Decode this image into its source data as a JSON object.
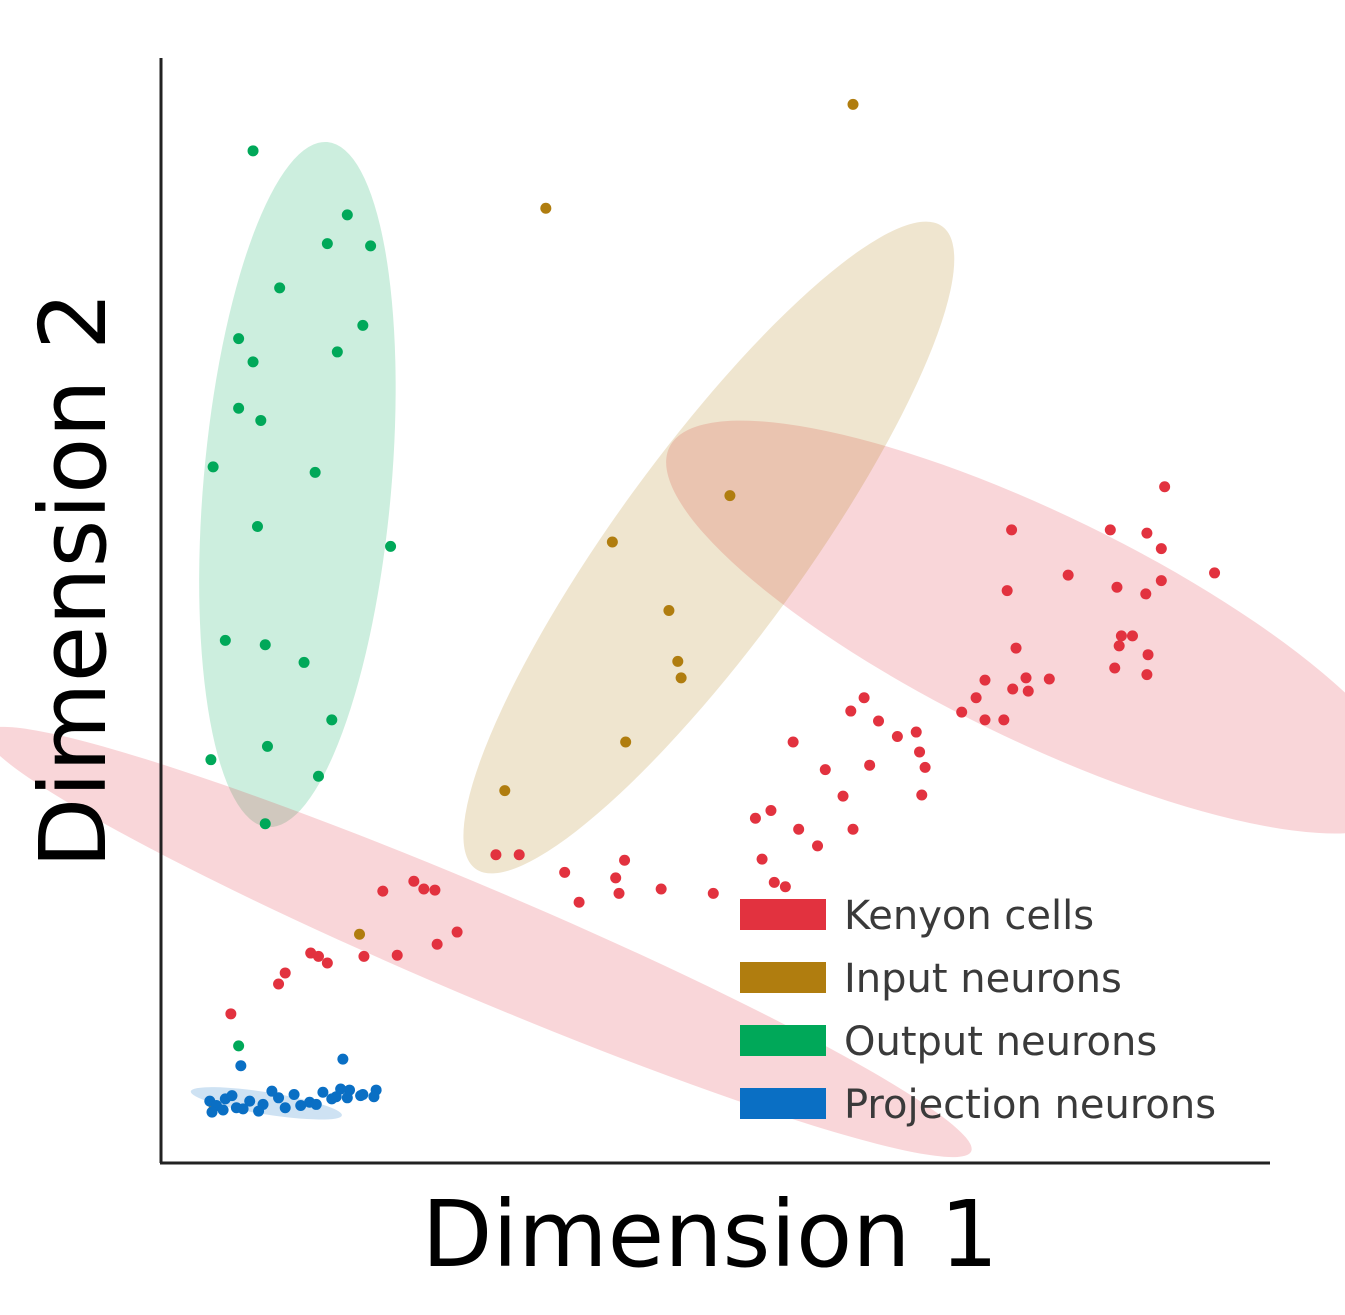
{
  "chart_data": {
    "type": "scatter",
    "title": "",
    "xlabel": "Dimension 1",
    "ylabel": "Dimension 2",
    "xlim": [
      0,
      100
    ],
    "ylim": [
      0,
      100
    ],
    "grid": false,
    "ticks": false,
    "legend_position": "bottom-right",
    "series": [
      {
        "name": "Kenyon cells",
        "color": "#e2323f",
        "ellipses": [
          {
            "cx": 28.6,
            "cy": 20.0,
            "rx": 48.3,
            "ry": 4.9,
            "angle": 23
          },
          {
            "cx": 79.1,
            "cy": 48.5,
            "rx": 37.0,
            "ry": 10.2,
            "angle": 26
          }
        ],
        "x": [
          90.5,
          88.9,
          95.0,
          76.3,
          76.7,
          81.8,
          86.2,
          85.6,
          90.2,
          90.2,
          86.4,
          86.0,
          88.9,
          77.1,
          78.0,
          74.3,
          74.3,
          78.2,
          80.1,
          76.8,
          76.0,
          86.6,
          87.6,
          89.0,
          88.8,
          73.5,
          62.2,
          64.7,
          66.4,
          72.2,
          68.4,
          63.9,
          63.4,
          68.1,
          61.5,
          68.9,
          68.6,
          57.0,
          59.9,
          55.0,
          62.4,
          59.2,
          53.6,
          57.5,
          56.3,
          55.3,
          54.2,
          49.8,
          45.1,
          41.3,
          41.0,
          37.7,
          41.8,
          36.4,
          32.3,
          30.2,
          23.7,
          24.7,
          20.0,
          26.7,
          24.9,
          22.8,
          21.3,
          18.3,
          11.2,
          10.6,
          13.5,
          14.2,
          15.0,
          6.3
        ],
        "y": [
          61.2,
          57.0,
          53.4,
          51.8,
          57.3,
          53.2,
          52.1,
          57.3,
          55.6,
          52.7,
          46.8,
          44.8,
          44.2,
          46.6,
          43.9,
          40.1,
          43.7,
          42.7,
          43.8,
          42.9,
          40.1,
          47.7,
          47.7,
          46.0,
          51.5,
          42.1,
          40.9,
          40.0,
          38.6,
          40.8,
          37.2,
          36.0,
          42.1,
          39.0,
          33.2,
          35.8,
          33.3,
          38.1,
          35.6,
          31.9,
          30.2,
          28.7,
          31.2,
          30.2,
          25.0,
          25.4,
          27.5,
          24.4,
          24.8,
          24.4,
          25.8,
          23.6,
          27.4,
          26.3,
          27.9,
          27.9,
          24.8,
          24.7,
          24.6,
          20.9,
          19.8,
          25.5,
          18.8,
          18.7,
          17.2,
          16.2,
          19.0,
          18.7,
          18.1,
          13.5
        ]
      },
      {
        "name": "Input neurons",
        "color": "#b07d0f",
        "ellipses": [
          {
            "cx": 49.4,
            "cy": 55.7,
            "rx": 35.8,
            "ry": 8.5,
            "angle": -54
          }
        ],
        "x": [
          62.4,
          34.7,
          51.3,
          40.7,
          45.8,
          46.6,
          46.9,
          41.9,
          31.0,
          17.9,
          4.8
        ],
        "y": [
          95.8,
          86.4,
          60.4,
          56.2,
          50.0,
          45.4,
          43.9,
          38.1,
          33.7,
          20.7,
          5.1
        ]
      },
      {
        "name": "Output neurons",
        "color": "#00a859",
        "ellipses": [
          {
            "cx": 12.3,
            "cy": 61.4,
            "rx": 31.0,
            "ry": 8.5,
            "angle": -85
          }
        ],
        "x": [
          8.3,
          16.8,
          15.0,
          18.9,
          10.7,
          18.2,
          7.0,
          15.9,
          8.3,
          7.0,
          9.0,
          4.7,
          13.9,
          8.7,
          20.7,
          5.8,
          9.4,
          12.9,
          15.4,
          9.6,
          14.2,
          4.5,
          9.4,
          7.0
        ],
        "y": [
          91.6,
          85.8,
          83.2,
          83.0,
          79.2,
          75.8,
          74.6,
          73.4,
          72.5,
          68.3,
          67.2,
          63.0,
          62.5,
          57.6,
          55.8,
          47.3,
          46.9,
          45.3,
          40.1,
          37.7,
          35.0,
          36.5,
          30.7,
          10.6
        ]
      },
      {
        "name": "Projection neurons",
        "color": "#0a6fc4",
        "ellipses": [
          {
            "cx": 9.5,
            "cy": 5.4,
            "rx": 6.9,
            "ry": 1.0,
            "angle": 9
          }
        ],
        "x": [
          4.4,
          5.0,
          5.8,
          6.8,
          8.0,
          9.2,
          10.6,
          12.0,
          13.4,
          14.6,
          15.8,
          17.0,
          18.2,
          19.4,
          4.6,
          5.6,
          7.4,
          8.8,
          11.2,
          12.6,
          14.0,
          15.4,
          16.8,
          18.0,
          19.2,
          6.4,
          10.0,
          16.2,
          7.2,
          16.4
        ],
        "y": [
          5.6,
          5.2,
          5.8,
          5.0,
          5.6,
          5.3,
          5.9,
          6.2,
          5.5,
          6.4,
          6.0,
          6.6,
          6.2,
          6.6,
          4.6,
          4.8,
          4.9,
          4.7,
          5.0,
          5.2,
          5.3,
          5.8,
          5.9,
          6.1,
          6.0,
          6.1,
          6.5,
          6.7,
          8.8,
          9.4
        ]
      }
    ]
  }
}
